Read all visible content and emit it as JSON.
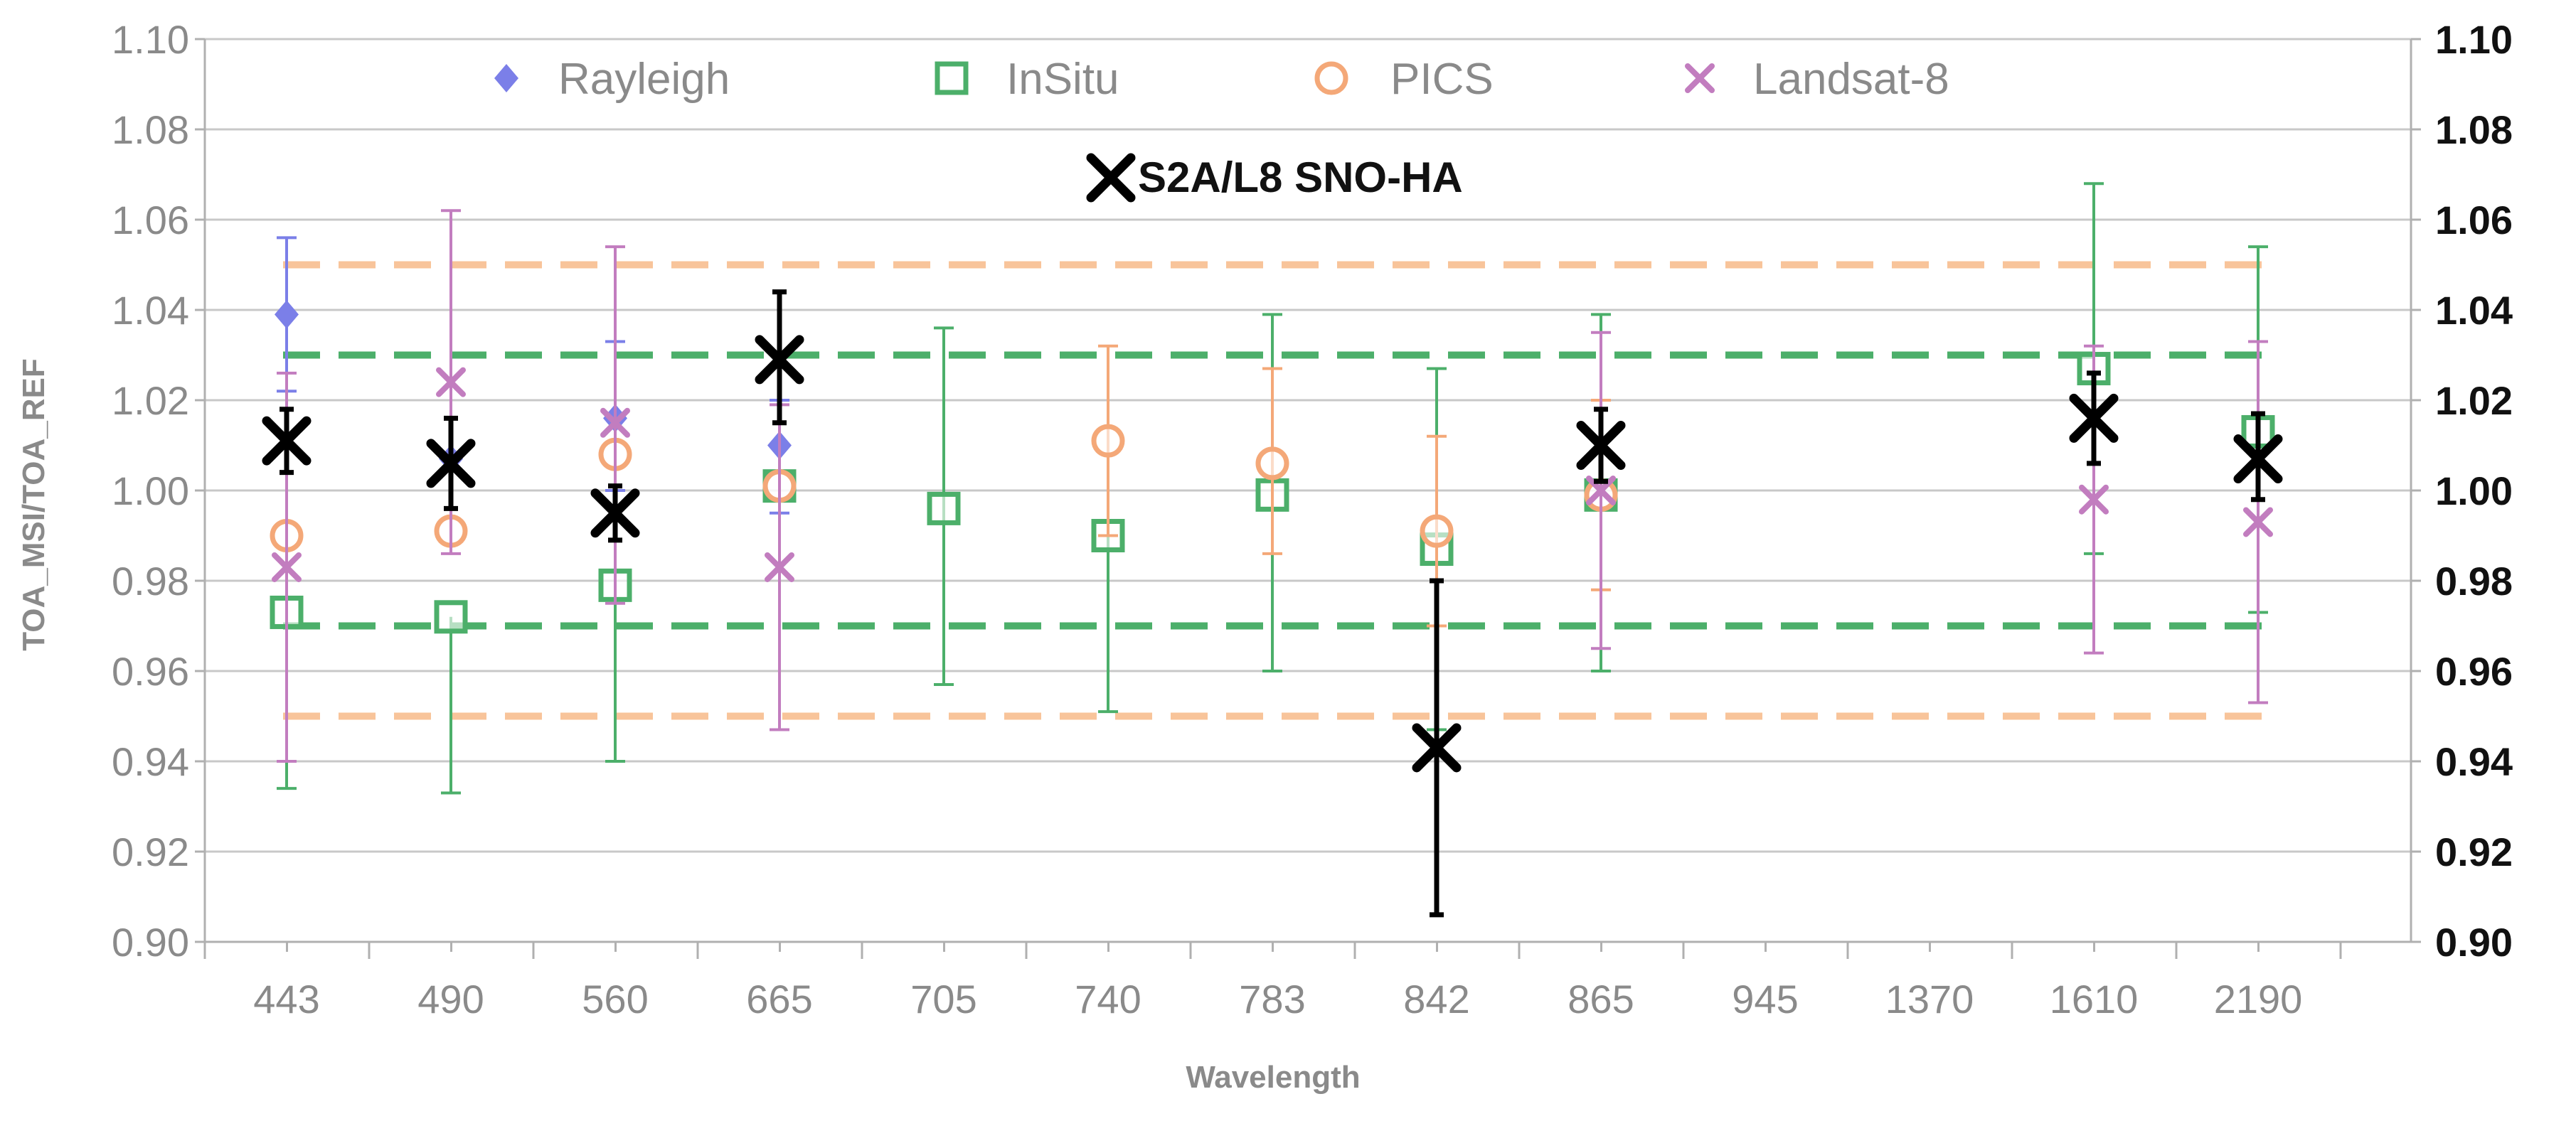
{
  "chart_data": {
    "type": "scatter",
    "title": "",
    "xlabel": "Wavelength",
    "ylabel": "TOA_MSI/TOA_REF",
    "ylim": [
      0.9,
      1.1
    ],
    "yticks": [
      "0.90",
      "0.92",
      "0.94",
      "0.96",
      "0.98",
      "1.00",
      "1.02",
      "1.04",
      "1.06",
      "1.08",
      "1.10"
    ],
    "categories": [
      "443",
      "490",
      "560",
      "665",
      "705",
      "740",
      "783",
      "842",
      "865",
      "945",
      "1370",
      "1610",
      "2190"
    ],
    "reference_lines": [
      {
        "name": "PICS upper",
        "value": 1.05,
        "color": "#f8c49a"
      },
      {
        "name": "InSitu upper",
        "value": 1.03,
        "color": "#4caf6a"
      },
      {
        "name": "InSitu lower",
        "value": 0.97,
        "color": "#4caf6a"
      },
      {
        "name": "PICS lower",
        "value": 0.95,
        "color": "#f8c49a"
      }
    ],
    "series": [
      {
        "name": "Rayleigh",
        "marker": "diamond",
        "color": "#7b7fe8",
        "values": [
          1.039,
          1.007,
          1.016,
          1.01,
          null,
          null,
          null,
          null,
          null,
          null,
          null,
          null,
          null
        ],
        "err_low": [
          1.022,
          null,
          1.0,
          0.995,
          null,
          null,
          null,
          null,
          null,
          null,
          null,
          null,
          null
        ],
        "err_high": [
          1.056,
          null,
          1.033,
          1.02,
          null,
          null,
          null,
          null,
          null,
          null,
          null,
          null,
          null
        ]
      },
      {
        "name": "InSitu",
        "marker": "square",
        "color": "#4caf6a",
        "values": [
          0.973,
          0.972,
          0.979,
          1.001,
          0.996,
          0.99,
          0.999,
          0.987,
          0.999,
          null,
          null,
          1.027,
          1.013
        ],
        "err_low": [
          0.934,
          0.933,
          0.94,
          null,
          0.957,
          0.951,
          0.96,
          0.947,
          0.96,
          null,
          null,
          0.986,
          0.973
        ],
        "err_high": [
          null,
          null,
          null,
          null,
          1.036,
          null,
          1.039,
          1.027,
          1.039,
          null,
          null,
          1.068,
          1.054
        ]
      },
      {
        "name": "PICS",
        "marker": "circle",
        "color": "#f4a878",
        "values": [
          0.99,
          0.991,
          1.008,
          1.001,
          null,
          1.011,
          1.006,
          0.991,
          0.999,
          null,
          null,
          null,
          null
        ],
        "err_low": [
          null,
          null,
          null,
          null,
          null,
          0.99,
          0.986,
          0.97,
          0.978,
          null,
          null,
          null,
          null
        ],
        "err_high": [
          null,
          null,
          null,
          null,
          null,
          1.032,
          1.027,
          1.012,
          1.02,
          null,
          null,
          null,
          null
        ]
      },
      {
        "name": "Landsat-8",
        "marker": "x",
        "color": "#c27dbf",
        "values": [
          0.983,
          1.024,
          1.015,
          0.983,
          null,
          null,
          null,
          null,
          1.0,
          null,
          null,
          0.998,
          0.993
        ],
        "err_low": [
          0.94,
          0.986,
          0.975,
          0.947,
          null,
          null,
          null,
          null,
          0.965,
          null,
          null,
          0.964,
          0.953
        ],
        "err_high": [
          1.026,
          1.062,
          1.054,
          1.019,
          null,
          null,
          null,
          null,
          1.035,
          null,
          null,
          1.032,
          1.033
        ]
      },
      {
        "name": "S2A/L8 SNO-HA",
        "marker": "x-bold",
        "color": "#000000",
        "values": [
          1.011,
          1.006,
          0.995,
          1.029,
          null,
          null,
          null,
          0.943,
          1.01,
          null,
          null,
          1.016,
          1.007
        ],
        "err_low": [
          1.004,
          0.996,
          0.989,
          1.015,
          null,
          null,
          null,
          0.906,
          1.002,
          null,
          null,
          1.006,
          0.998
        ],
        "err_high": [
          1.018,
          1.016,
          1.001,
          1.044,
          null,
          null,
          null,
          0.98,
          1.018,
          null,
          null,
          1.026,
          1.017
        ]
      }
    ],
    "legend": [
      {
        "label": "Rayleigh",
        "marker": "diamond"
      },
      {
        "label": "InSitu",
        "marker": "square"
      },
      {
        "label": "PICS",
        "marker": "circle"
      },
      {
        "label": "Landsat-8",
        "marker": "x"
      },
      {
        "label": "S2A/L8 SNO-HA",
        "marker": "x-bold"
      }
    ]
  }
}
